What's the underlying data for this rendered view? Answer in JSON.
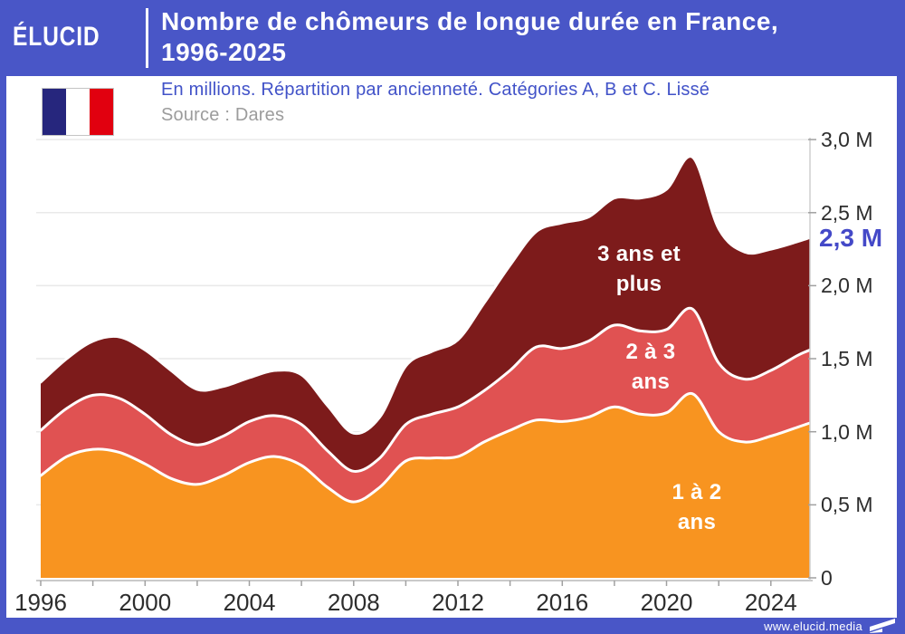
{
  "header": {
    "logo": "ÉLUCID",
    "title_line1": "Nombre de chômeurs de longue durée en France,",
    "title_line2": "1996-2025",
    "subtitle": "En millions. Répartition par ancienneté. Catégories A, B et C. Lissé",
    "source": "Source : Dares"
  },
  "footer": {
    "url": "www.elucid.media"
  },
  "colors": {
    "brand_blue": "#4956C7",
    "subtitle_blue": "#4152C8",
    "end_label_blue": "#4449C8",
    "orange_1_2_ans": "#F89420",
    "red_2_3_ans": "#E05252",
    "dark_red_3_plus": "#7D1B1B",
    "flag_blue": "#26267D",
    "flag_red": "#E1000F",
    "axis_text": "#2d2d2d",
    "source_gray": "#9C9C9C",
    "grid": "#E9E9E9",
    "axis_line": "#B9B9B9"
  },
  "chart_data": {
    "type": "area",
    "stacked": true,
    "title": "Nombre de chômeurs de longue durée en France, 1996-2025",
    "subtitle": "En millions. Répartition par ancienneté. Catégories A, B et C. Lissé",
    "source": "Source : Dares",
    "unit": "millions",
    "xlim": [
      1996,
      2025.5
    ],
    "ylim": [
      0,
      3.0
    ],
    "x": [
      1996,
      1997,
      1998,
      1999,
      2000,
      2001,
      2002,
      2003,
      2004,
      2005,
      2006,
      2007,
      2008,
      2009,
      2010,
      2011,
      2012,
      2013,
      2014,
      2015,
      2016,
      2017,
      2018,
      2019,
      2020,
      2021,
      2022,
      2023,
      2024,
      2025,
      2025.5
    ],
    "series": [
      {
        "name": "1 à 2 ans",
        "label_line1": "1 à 2",
        "label_line2": "ans",
        "color": "#F89420",
        "values": [
          0.7,
          0.83,
          0.88,
          0.86,
          0.78,
          0.68,
          0.64,
          0.7,
          0.79,
          0.83,
          0.77,
          0.62,
          0.52,
          0.62,
          0.8,
          0.82,
          0.83,
          0.93,
          1.01,
          1.08,
          1.07,
          1.1,
          1.17,
          1.12,
          1.13,
          1.26,
          1.0,
          0.93,
          0.97,
          1.03,
          1.06
        ]
      },
      {
        "name": "2 à 3 ans",
        "label_line1": "2 à 3",
        "label_line2": "ans",
        "color": "#E05252",
        "values": [
          0.31,
          0.33,
          0.37,
          0.37,
          0.34,
          0.3,
          0.27,
          0.27,
          0.28,
          0.28,
          0.28,
          0.25,
          0.21,
          0.2,
          0.25,
          0.3,
          0.34,
          0.35,
          0.41,
          0.5,
          0.5,
          0.52,
          0.56,
          0.57,
          0.57,
          0.58,
          0.47,
          0.43,
          0.45,
          0.49,
          0.5
        ]
      },
      {
        "name": "3 ans et plus",
        "label_line1": "3 ans et",
        "label_line2": "plus",
        "color": "#7D1B1B",
        "values": [
          0.33,
          0.34,
          0.37,
          0.42,
          0.44,
          0.44,
          0.38,
          0.34,
          0.3,
          0.31,
          0.34,
          0.31,
          0.26,
          0.28,
          0.4,
          0.43,
          0.46,
          0.6,
          0.72,
          0.79,
          0.86,
          0.85,
          0.87,
          0.91,
          0.96,
          1.04,
          0.92,
          0.87,
          0.83,
          0.78,
          0.77
        ]
      }
    ],
    "end_label": "2,3 M",
    "y_ticks": [
      "3,0 M",
      "2,5 M",
      "2,0 M",
      "1,5 M",
      "1,0 M",
      "0,5 M",
      "0"
    ],
    "y_tick_values": [
      3.0,
      2.5,
      2.0,
      1.5,
      1.0,
      0.5,
      0
    ],
    "x_tick_labels": [
      "1996",
      "2000",
      "2004",
      "2008",
      "2012",
      "2016",
      "2020",
      "2024"
    ],
    "x_tick_values": [
      1996,
      2000,
      2004,
      2008,
      2012,
      2016,
      2020,
      2024
    ],
    "x_minor_tick_step": 2,
    "grid": true,
    "legend_position": "inside-areas"
  }
}
